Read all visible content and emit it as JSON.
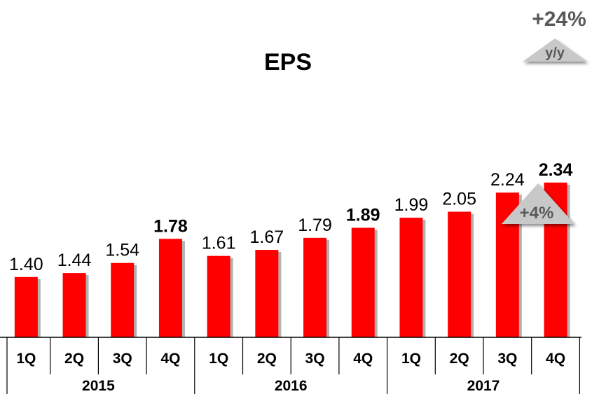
{
  "chart_data": {
    "type": "bar",
    "title": "EPS",
    "categories": [
      "1Q",
      "2Q",
      "3Q",
      "4Q",
      "1Q",
      "2Q",
      "3Q",
      "4Q",
      "1Q",
      "2Q",
      "3Q",
      "4Q"
    ],
    "groups": [
      {
        "label": "2015",
        "count": 4
      },
      {
        "label": "2016",
        "count": 4
      },
      {
        "label": "2017",
        "count": 4
      }
    ],
    "values": [
      1.4,
      1.44,
      1.54,
      1.78,
      1.61,
      1.67,
      1.79,
      1.89,
      1.99,
      2.05,
      2.24,
      2.34
    ],
    "value_labels": [
      "1.40",
      "1.44",
      "1.54",
      "1.78",
      "1.61",
      "1.67",
      "1.79",
      "1.89",
      "1.99",
      "2.05",
      "2.24",
      "2.34"
    ],
    "bold_labels": [
      3,
      7,
      11
    ],
    "bar_color": "#ff0000",
    "grid": false,
    "annotations": {
      "yoy": {
        "value": "+24%",
        "sub": "y/y"
      },
      "qoq": {
        "value": "+4%"
      }
    }
  }
}
